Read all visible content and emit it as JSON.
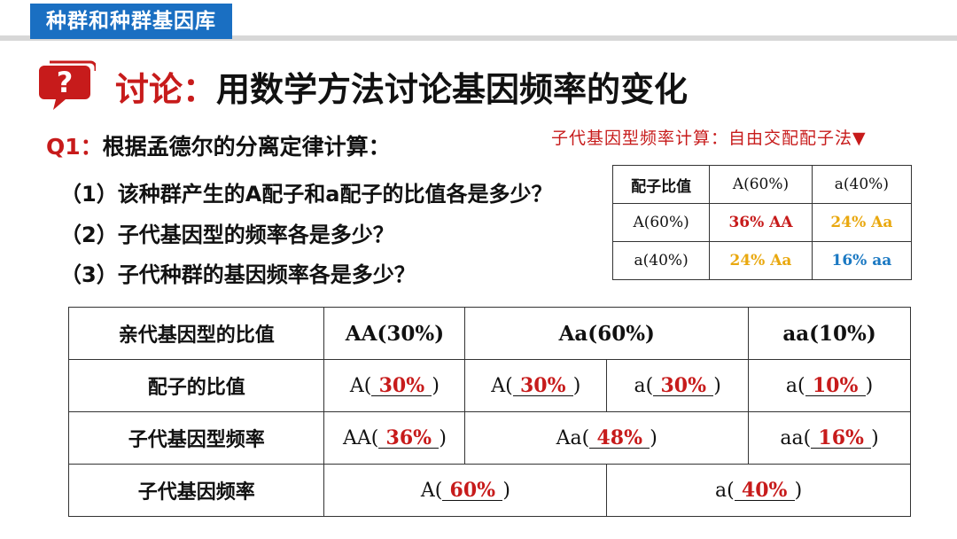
{
  "header": {
    "tag": "种群和种群基因库"
  },
  "title": {
    "prefix": "讨论：",
    "text": "用数学方法讨论基因频率的变化"
  },
  "q1": {
    "label": "Q1：",
    "text": "根据孟德尔的分离定律计算："
  },
  "sub_questions": [
    "（1）该种群产生的A配子和a配子的比值各是多少？",
    "（2）子代基因型的频率各是多少？",
    "（3）子代种群的基因频率各是多少？"
  ],
  "side_note": "子代基因型频率计算：自由交配配子法▼",
  "punnett": {
    "corner": "配子比值",
    "col_headers": [
      "A(60%)",
      "a(40%)"
    ],
    "rows": [
      {
        "header": "A(60%)",
        "cells": [
          "36% AA",
          "24% Aa"
        ]
      },
      {
        "header": "a(40%)",
        "cells": [
          "24% Aa",
          "16% aa"
        ]
      }
    ]
  },
  "colors": {
    "red": "#c71b1b",
    "yellow": "#e9a80f",
    "blue": "#1a78c2",
    "header_blue": "#1a6fc2"
  },
  "main_table": {
    "headers": [
      "亲代基因型的比值",
      "AA(30%)",
      "Aa(60%)",
      "aa(10%)"
    ],
    "gamete_row": {
      "label": "配子的比值",
      "cells": [
        {
          "prefix": "A(",
          "value": "30%",
          "suffix": ")"
        },
        {
          "prefix": "A(",
          "value": "30%",
          "suffix": ")"
        },
        {
          "prefix": "a(",
          "value": "30%",
          "suffix": ")"
        },
        {
          "prefix": "a(",
          "value": "10%",
          "suffix": ")"
        }
      ]
    },
    "genotype_row": {
      "label": "子代基因型频率",
      "cells": [
        {
          "prefix": "AA(",
          "value": "36%",
          "suffix": ")"
        },
        {
          "prefix": "Aa(",
          "value": "48%",
          "suffix": ")"
        },
        {
          "prefix": "aa(",
          "value": "16%",
          "suffix": ")"
        }
      ]
    },
    "gene_row": {
      "label": "子代基因频率",
      "cells": [
        {
          "prefix": "A(",
          "value": "60%",
          "suffix": ")"
        },
        {
          "prefix": "a(",
          "value": "40%",
          "suffix": ")"
        }
      ]
    }
  }
}
